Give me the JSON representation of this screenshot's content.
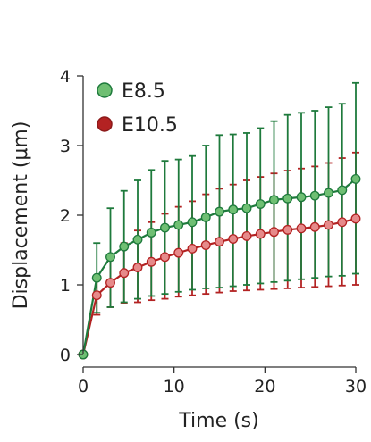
{
  "chart_data": {
    "type": "line",
    "xlabel": "Time (s)",
    "ylabel": "Displacement (μm)",
    "xlim": [
      0,
      30
    ],
    "ylim": [
      0,
      4
    ],
    "xticks": [
      0,
      10,
      20,
      30
    ],
    "yticks": [
      0,
      1,
      2,
      3,
      4
    ],
    "legend_position": "top-left",
    "grid": false,
    "series": [
      {
        "name": "E8.5",
        "color": "#1e7a3c",
        "marker_fill": "#6fbf73",
        "x": [
          0,
          1.5,
          3,
          4.5,
          6,
          7.5,
          9,
          10.5,
          12,
          13.5,
          15,
          16.5,
          18,
          19.5,
          21,
          22.5,
          24,
          25.5,
          27,
          28.5,
          30
        ],
        "y": [
          0,
          1.1,
          1.4,
          1.55,
          1.65,
          1.75,
          1.82,
          1.86,
          1.9,
          1.97,
          2.05,
          2.08,
          2.1,
          2.16,
          2.22,
          2.24,
          2.26,
          2.28,
          2.32,
          2.36,
          2.52
        ],
        "error_upper": [
          0,
          1.6,
          2.1,
          2.35,
          2.5,
          2.65,
          2.78,
          2.8,
          2.85,
          3.0,
          3.15,
          3.16,
          3.18,
          3.25,
          3.35,
          3.44,
          3.47,
          3.5,
          3.55,
          3.6,
          3.9
        ],
        "error_lower": [
          0,
          0.6,
          0.68,
          0.75,
          0.8,
          0.84,
          0.87,
          0.9,
          0.93,
          0.95,
          0.96,
          0.98,
          1.0,
          1.02,
          1.04,
          1.06,
          1.08,
          1.1,
          1.12,
          1.13,
          1.16
        ]
      },
      {
        "name": "E10.5",
        "color": "#b32222",
        "marker_fill": "#e68a8a",
        "x": [
          0,
          1.5,
          3,
          4.5,
          6,
          7.5,
          9,
          10.5,
          12,
          13.5,
          15,
          16.5,
          18,
          19.5,
          21,
          22.5,
          24,
          25.5,
          27,
          28.5,
          30
        ],
        "y": [
          0,
          0.85,
          1.03,
          1.17,
          1.25,
          1.33,
          1.4,
          1.46,
          1.52,
          1.57,
          1.62,
          1.66,
          1.7,
          1.73,
          1.76,
          1.79,
          1.81,
          1.83,
          1.86,
          1.9,
          1.95
        ],
        "error_upper": [
          0,
          1.12,
          1.38,
          1.6,
          1.78,
          1.9,
          2.02,
          2.12,
          2.2,
          2.3,
          2.38,
          2.44,
          2.5,
          2.55,
          2.6,
          2.64,
          2.67,
          2.7,
          2.75,
          2.82,
          2.9
        ],
        "error_lower": [
          0,
          0.57,
          0.68,
          0.73,
          0.75,
          0.78,
          0.8,
          0.83,
          0.85,
          0.87,
          0.89,
          0.91,
          0.92,
          0.93,
          0.94,
          0.95,
          0.96,
          0.97,
          0.98,
          0.99,
          1.0
        ]
      }
    ]
  }
}
